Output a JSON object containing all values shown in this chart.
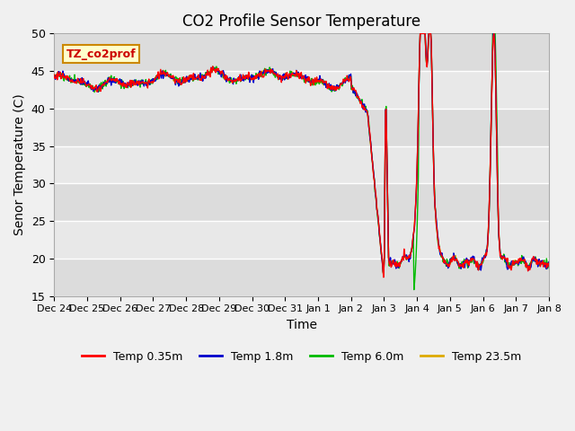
{
  "title": "CO2 Profile Sensor Temperature",
  "xlabel": "Time",
  "ylabel": "Senor Temperature (C)",
  "ylim": [
    15,
    50
  ],
  "annotation_text": "TZ_co2prof",
  "annotation_bg": "#ffffcc",
  "annotation_border": "#cc8800",
  "fig_bg": "#f0f0f0",
  "plot_bg": "#e8e8e8",
  "legend": [
    "Temp 0.35m",
    "Temp 1.8m",
    "Temp 6.0m",
    "Temp 23.5m"
  ],
  "legend_colors": [
    "#ff0000",
    "#0000cc",
    "#00cc00",
    "#ddaa00"
  ],
  "xtick_labels": [
    "Dec 24",
    "Dec 25",
    "Dec 26",
    "Dec 27",
    "Dec 28",
    "Dec 29",
    "Dec 30",
    "Dec 31",
    "Jan 1",
    "Jan 2",
    "Jan 3",
    "Jan 4",
    "Jan 5",
    "Jan 6",
    "Jan 7",
    "Jan 8"
  ],
  "grid_color": "#ffffff",
  "band_colors": [
    "#dcdcdc",
    "#e8e8e8"
  ]
}
